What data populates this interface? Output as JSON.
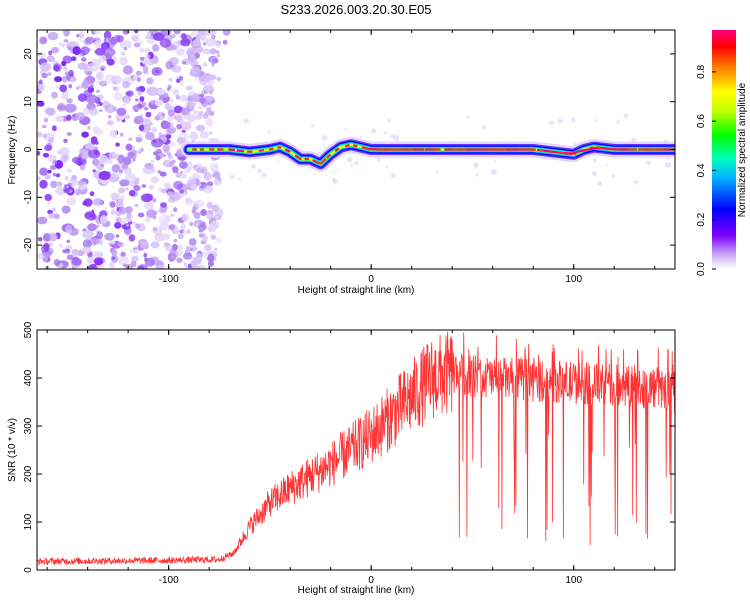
{
  "title": "S233.2026.003.20.30.E05",
  "chart_data": [
    {
      "type": "heatmap",
      "xlabel": "Height of straight line (km)",
      "ylabel": "Frequency (Hz)",
      "xlim": [
        -165,
        150
      ],
      "ylim": [
        -25,
        25
      ],
      "xticks": [
        -100,
        0,
        100
      ],
      "yticks": [
        -20,
        -10,
        0,
        10,
        20
      ],
      "colorbar": {
        "label": "Normalized spectral amplitude",
        "range": [
          0,
          0.97
        ],
        "ticks": [
          "0.0",
          "0.2",
          "0.4",
          "0.6",
          "0.8"
        ],
        "tick_values": [
          0,
          0.2,
          0.4,
          0.6,
          0.8
        ],
        "colormap": [
          "#ffffff",
          "#b18cf2",
          "#8000ff",
          "#0000ff",
          "#00b0ff",
          "#00ffc0",
          "#00ff00",
          "#c0ff00",
          "#ffff00",
          "#ff8000",
          "#ff0000",
          "#ff0080"
        ]
      },
      "noise_region_x": [
        -165,
        -75
      ],
      "signal_start_x": -90,
      "ridge": {
        "x": [
          -90,
          -80,
          -70,
          -60,
          -50,
          -45,
          -40,
          -35,
          -30,
          -25,
          -20,
          -15,
          -10,
          -5,
          0,
          20,
          40,
          60,
          80,
          90,
          100,
          105,
          110,
          120,
          130,
          140,
          150
        ],
        "freq": [
          0,
          0,
          0,
          -0.5,
          0,
          0.5,
          -0.5,
          -2,
          -2,
          -3,
          -1,
          0.5,
          1,
          0.5,
          0,
          0,
          0,
          0,
          0,
          -0.5,
          -1,
          0,
          0.5,
          0,
          0,
          0,
          0
        ]
      }
    },
    {
      "type": "line",
      "xlabel": "Height of straight line (km)",
      "ylabel": "SNR (10 * v/v)",
      "xlim": [
        -165,
        150
      ],
      "ylim": [
        0,
        500
      ],
      "xticks": [
        -100,
        0,
        100
      ],
      "yticks": [
        0,
        100,
        200,
        300,
        400,
        500
      ],
      "series": [
        {
          "name": "SNR",
          "color": "#ff3333",
          "trend_x": [
            -165,
            -100,
            -75,
            -68,
            -60,
            -50,
            -40,
            -30,
            -20,
            -10,
            0,
            10,
            20,
            30,
            40,
            60,
            80,
            100,
            120,
            140,
            150
          ],
          "trend_y": [
            18,
            20,
            22,
            35,
            90,
            140,
            170,
            195,
            220,
            250,
            280,
            320,
            360,
            400,
            410,
            400,
            395,
            390,
            385,
            380,
            370
          ]
        }
      ]
    }
  ]
}
